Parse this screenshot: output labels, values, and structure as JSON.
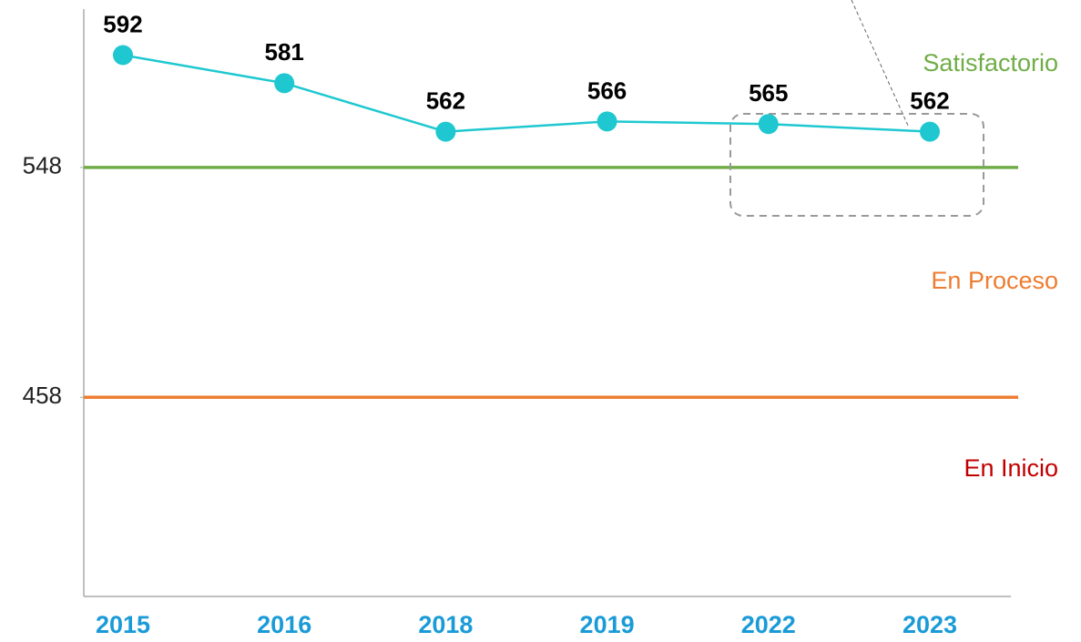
{
  "chart_data": {
    "type": "line",
    "categories": [
      "2015",
      "2016",
      "2018",
      "2019",
      "2022",
      "2023"
    ],
    "series": [
      {
        "color": "#1fc8d0",
        "values": [
          592,
          581,
          562,
          566,
          565,
          562
        ]
      }
    ],
    "ylim": [
      380,
      610
    ],
    "yticks": [
      458,
      548
    ],
    "reference_lines": [
      {
        "value": 548,
        "color": "#70ad47",
        "label": "Satisfactorio"
      },
      {
        "value": 458,
        "color": "#ed7d31",
        "label": "En Proceso"
      }
    ],
    "bottom_zone": {
      "label": "En Inicio",
      "color": "#c00000"
    }
  }
}
